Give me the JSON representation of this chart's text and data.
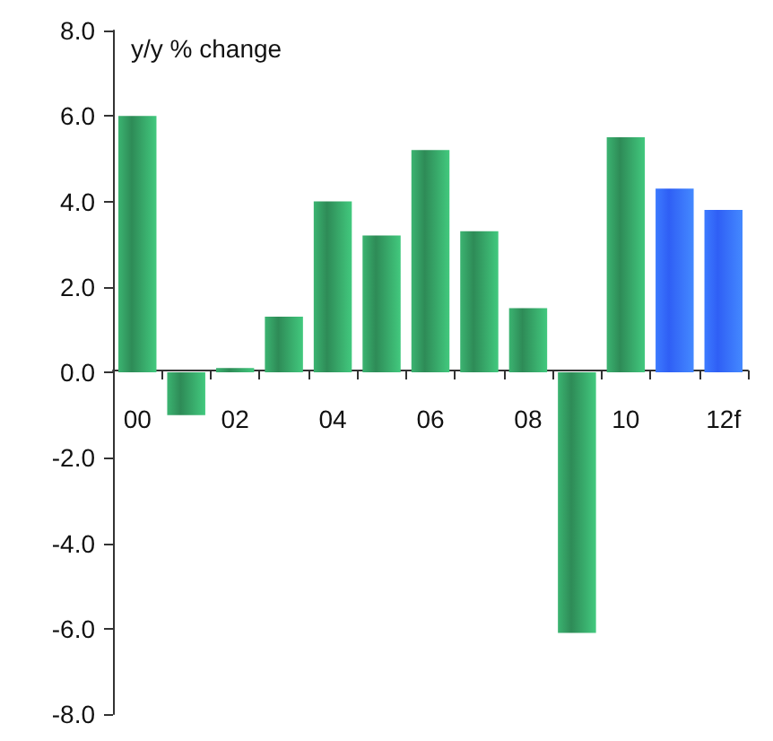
{
  "chart_data": {
    "type": "bar",
    "ylabel": "y/y % change",
    "categories": [
      "00",
      null,
      "02",
      null,
      "04",
      null,
      "06",
      null,
      "08",
      null,
      "10",
      null,
      "12f"
    ],
    "values": [
      6.0,
      -1.0,
      0.1,
      1.3,
      4.0,
      3.2,
      5.2,
      3.3,
      1.5,
      -6.1,
      5.5,
      4.3,
      3.8
    ],
    "colors": [
      "#2e8b57",
      "#2e8b57",
      "#2e8b57",
      "#2e8b57",
      "#2e8b57",
      "#2e8b57",
      "#2e8b57",
      "#2e8b57",
      "#2e8b57",
      "#2e8b57",
      "#2e8b57",
      "#2f5ff5",
      "#2f5ff5"
    ],
    "ylim": [
      -8,
      8
    ],
    "yticks": [
      {
        "value": -8,
        "label": "-8.0"
      },
      {
        "value": -6,
        "label": "-6.0"
      },
      {
        "value": -4,
        "label": "-4.0"
      },
      {
        "value": -2,
        "label": "-2.0"
      },
      {
        "value": 0,
        "label": "0.0"
      },
      {
        "value": 2,
        "label": "2.0"
      },
      {
        "value": 4,
        "label": "4.0"
      },
      {
        "value": 6,
        "label": "6.0"
      },
      {
        "value": 8,
        "label": "8.0"
      }
    ]
  }
}
